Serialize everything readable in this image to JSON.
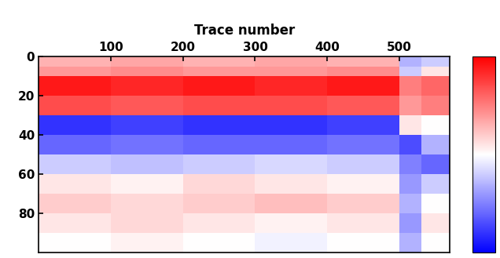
{
  "chart_data": {
    "type": "heatmap",
    "xlabel": "Trace number",
    "x_edges": [
      0,
      100,
      200,
      300,
      400,
      500,
      530,
      570
    ],
    "y_edges": [
      0,
      5,
      10,
      20,
      30,
      40,
      50,
      60,
      70,
      80,
      90,
      100
    ],
    "cells": [
      [
        0.3,
        0.35,
        0.3,
        0.35,
        0.3,
        -0.3,
        -0.2
      ],
      [
        0.4,
        0.45,
        0.4,
        0.4,
        0.45,
        -0.2,
        0.1
      ],
      [
        0.9,
        0.85,
        0.9,
        0.85,
        0.9,
        0.5,
        0.6
      ],
      [
        0.7,
        0.65,
        0.7,
        0.7,
        0.65,
        0.4,
        0.5
      ],
      [
        -0.8,
        -0.75,
        -0.8,
        -0.8,
        -0.75,
        0.1,
        0.0
      ],
      [
        -0.6,
        -0.55,
        -0.6,
        -0.6,
        -0.55,
        -0.7,
        -0.3
      ],
      [
        -0.2,
        -0.25,
        -0.2,
        -0.15,
        -0.2,
        -0.5,
        -0.6
      ],
      [
        0.1,
        0.05,
        0.15,
        0.1,
        0.05,
        -0.4,
        -0.2
      ],
      [
        0.2,
        0.15,
        0.2,
        0.25,
        0.2,
        -0.3,
        0.0
      ],
      [
        0.1,
        0.15,
        0.1,
        0.05,
        0.1,
        -0.4,
        0.1
      ],
      [
        0.0,
        0.05,
        0.0,
        -0.05,
        0.0,
        -0.3,
        0.0
      ]
    ],
    "xlim": [
      0,
      570
    ],
    "ylim": [
      100,
      0
    ],
    "xticks": [
      100,
      200,
      300,
      400,
      500
    ],
    "yticks": [
      0,
      20,
      40,
      60,
      80
    ],
    "colorbar": {
      "range": [
        -1,
        1
      ],
      "ticks": []
    }
  }
}
